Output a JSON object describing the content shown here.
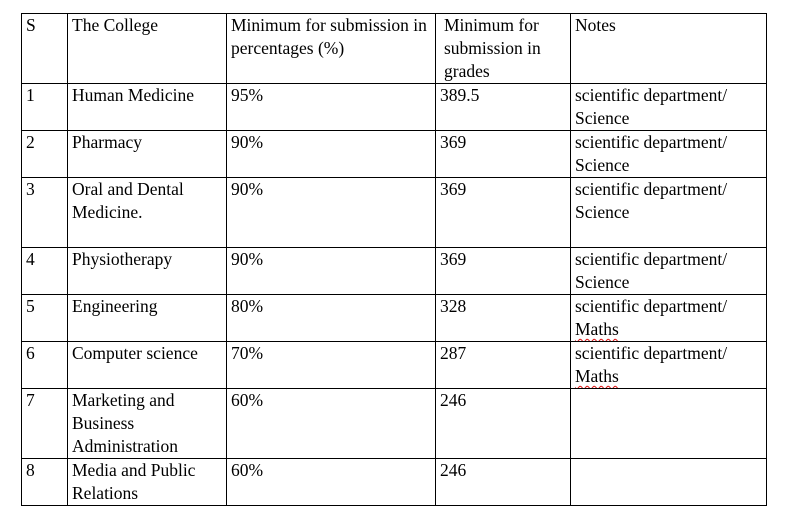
{
  "table": {
    "headers": {
      "s": "S",
      "college": "The College",
      "percent": "Minimum for submission in percentages (%)",
      "grades": "Minimum for submission in grades",
      "notes": "Notes"
    },
    "rows": [
      {
        "s": "1",
        "college": "Human Medicine",
        "percent": "95%",
        "grades": "389.5",
        "notes_prefix": "scientific department/ ",
        "notes_suffix": "Science"
      },
      {
        "s": "2",
        "college": "Pharmacy",
        "percent": "90%",
        "grades": "369",
        "notes_prefix": "scientific department/ ",
        "notes_suffix": "Science"
      },
      {
        "s": "3",
        "college": "Oral and Dental Medicine.",
        "percent": "90%",
        "grades": "369",
        "notes_prefix": "scientific department/ ",
        "notes_suffix": "Science"
      },
      {
        "s": "4",
        "college": "Physiotherapy",
        "percent": "90%",
        "grades": "369",
        "notes_prefix": "scientific department/ ",
        "notes_suffix": "Science"
      },
      {
        "s": "5",
        "college": "Engineering",
        "percent": "80%",
        "grades": "328",
        "notes_prefix": "scientific department/ ",
        "notes_suffix": "Maths"
      },
      {
        "s": "6",
        "college": "Computer science",
        "percent": "70%",
        "grades": "287",
        "notes_prefix": "scientific department/ ",
        "notes_suffix": "Maths"
      },
      {
        "s": "7",
        "college": "Marketing and Business Administration",
        "percent": "60%",
        "grades": "246",
        "notes_prefix": "",
        "notes_suffix": ""
      },
      {
        "s": "8",
        "college": "Media and Public Relations",
        "percent": "60%",
        "grades": "246",
        "notes_prefix": "",
        "notes_suffix": ""
      }
    ]
  },
  "colors": {
    "border": "#000000",
    "spellcheck_underline": "#dd1111"
  }
}
